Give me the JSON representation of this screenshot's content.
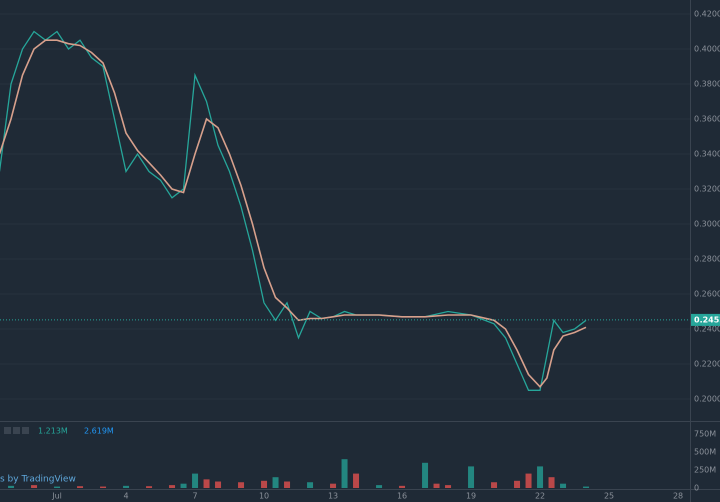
{
  "chart_data": [
    {
      "type": "line",
      "x": [
        -1.5,
        -1,
        -0.5,
        0,
        0.5,
        1,
        1.5,
        2,
        2.5,
        3,
        3.5,
        4,
        4.5,
        5,
        5.5,
        6,
        6.5,
        7,
        7.5,
        8,
        8.5,
        9,
        9.5,
        10,
        10.5,
        11,
        11.5,
        12,
        12.5,
        13,
        13.5,
        14,
        15,
        16,
        17,
        18,
        19,
        20,
        20.5,
        21,
        21.5,
        22,
        22.3,
        22.6,
        23,
        23.5,
        24
      ],
      "series": [
        {
          "color": "#26a69a",
          "values": [
            0.33,
            0.38,
            0.4,
            0.41,
            0.405,
            0.41,
            0.4,
            0.405,
            0.395,
            0.39,
            0.36,
            0.33,
            0.34,
            0.33,
            0.325,
            0.315,
            0.32,
            0.385,
            0.37,
            0.345,
            0.33,
            0.31,
            0.285,
            0.255,
            0.245,
            0.255,
            0.235,
            0.25,
            0.246,
            0.247,
            0.25,
            0.248,
            0.248,
            0.247,
            0.247,
            0.25,
            0.248,
            0.243,
            0.235,
            0.22,
            0.205,
            0.205,
            0.225,
            0.245,
            0.238,
            0.24,
            0.245
          ]
        },
        {
          "color": "#d7a08c",
          "values": [
            0.34,
            0.36,
            0.385,
            0.4,
            0.405,
            0.405,
            0.403,
            0.402,
            0.398,
            0.392,
            0.375,
            0.352,
            0.342,
            0.335,
            0.328,
            0.32,
            0.318,
            0.34,
            0.36,
            0.355,
            0.34,
            0.322,
            0.3,
            0.275,
            0.258,
            0.252,
            0.245,
            0.246,
            0.246,
            0.247,
            0.248,
            0.248,
            0.248,
            0.247,
            0.247,
            0.248,
            0.248,
            0.245,
            0.24,
            0.228,
            0.214,
            0.207,
            0.212,
            0.228,
            0.236,
            0.238,
            0.241
          ]
        }
      ],
      "xlim": [
        -1.48,
        28.52
      ],
      "ylim": [
        0.188,
        0.428
      ],
      "yticks": [
        {
          "value": 0.42,
          "label": "0.4200"
        },
        {
          "value": 0.4,
          "label": "0.4000"
        },
        {
          "value": 0.38,
          "label": "0.3800"
        },
        {
          "value": 0.36,
          "label": "0.3600"
        },
        {
          "value": 0.34,
          "label": "0.3400"
        },
        {
          "value": 0.32,
          "label": "0.3200"
        },
        {
          "value": 0.3,
          "label": "0.3000"
        },
        {
          "value": 0.28,
          "label": "0.2800"
        },
        {
          "value": 0.26,
          "label": "0.2600"
        },
        {
          "value": 0.24,
          "label": "0.2400"
        },
        {
          "value": 0.22,
          "label": "0.2200"
        },
        {
          "value": 0.2,
          "label": "0.2000"
        }
      ],
      "last_price": 0.2452,
      "grid": true
    },
    {
      "type": "bar",
      "x": [
        -1,
        0,
        1,
        2,
        3,
        4,
        5,
        6,
        6.5,
        7,
        7.5,
        8,
        9,
        10,
        10.5,
        11,
        12,
        13,
        13.5,
        14,
        15,
        16,
        17,
        17.5,
        18,
        19,
        20,
        21,
        21.5,
        22,
        22.5,
        23,
        24
      ],
      "values": [
        30000000,
        40000000,
        20000000,
        25000000,
        20000000,
        30000000,
        25000000,
        40000000,
        60000000,
        200000000,
        120000000,
        90000000,
        80000000,
        100000000,
        150000000,
        90000000,
        80000000,
        60000000,
        400000000,
        200000000,
        40000000,
        30000000,
        350000000,
        60000000,
        40000000,
        300000000,
        80000000,
        100000000,
        200000000,
        300000000,
        150000000,
        60000000,
        20000000
      ],
      "colors": [
        "#26a69a",
        "#ef5350",
        "#26a69a",
        "#ef5350",
        "#ef5350",
        "#26a69a",
        "#ef5350",
        "#ef5350",
        "#26a69a",
        "#26a69a",
        "#ef5350",
        "#ef5350",
        "#ef5350",
        "#ef5350",
        "#26a69a",
        "#ef5350",
        "#26a69a",
        "#ef5350",
        "#26a69a",
        "#ef5350",
        "#26a69a",
        "#ef5350",
        "#26a69a",
        "#ef5350",
        "#ef5350",
        "#26a69a",
        "#ef5350",
        "#ef5350",
        "#ef5350",
        "#26a69a",
        "#ef5350",
        "#26a69a",
        "#26a69a"
      ],
      "xlim": [
        -1.48,
        28.52
      ],
      "xticks": [
        {
          "value": 1,
          "label": "Jul"
        },
        4,
        7,
        10,
        13,
        16,
        19,
        22,
        25,
        28
      ],
      "ylim": [
        0,
        875000000
      ],
      "yticks": [
        {
          "value": 750000000,
          "label": "750M"
        },
        {
          "value": 500000000,
          "label": "500M"
        },
        {
          "value": 250000000,
          "label": "250M"
        },
        0
      ],
      "legend": [
        {
          "label": "1.213M",
          "color": "#26a69a"
        },
        {
          "label": "2.619M",
          "color": "#2196f3"
        }
      ],
      "credit": "s by TradingView"
    }
  ]
}
